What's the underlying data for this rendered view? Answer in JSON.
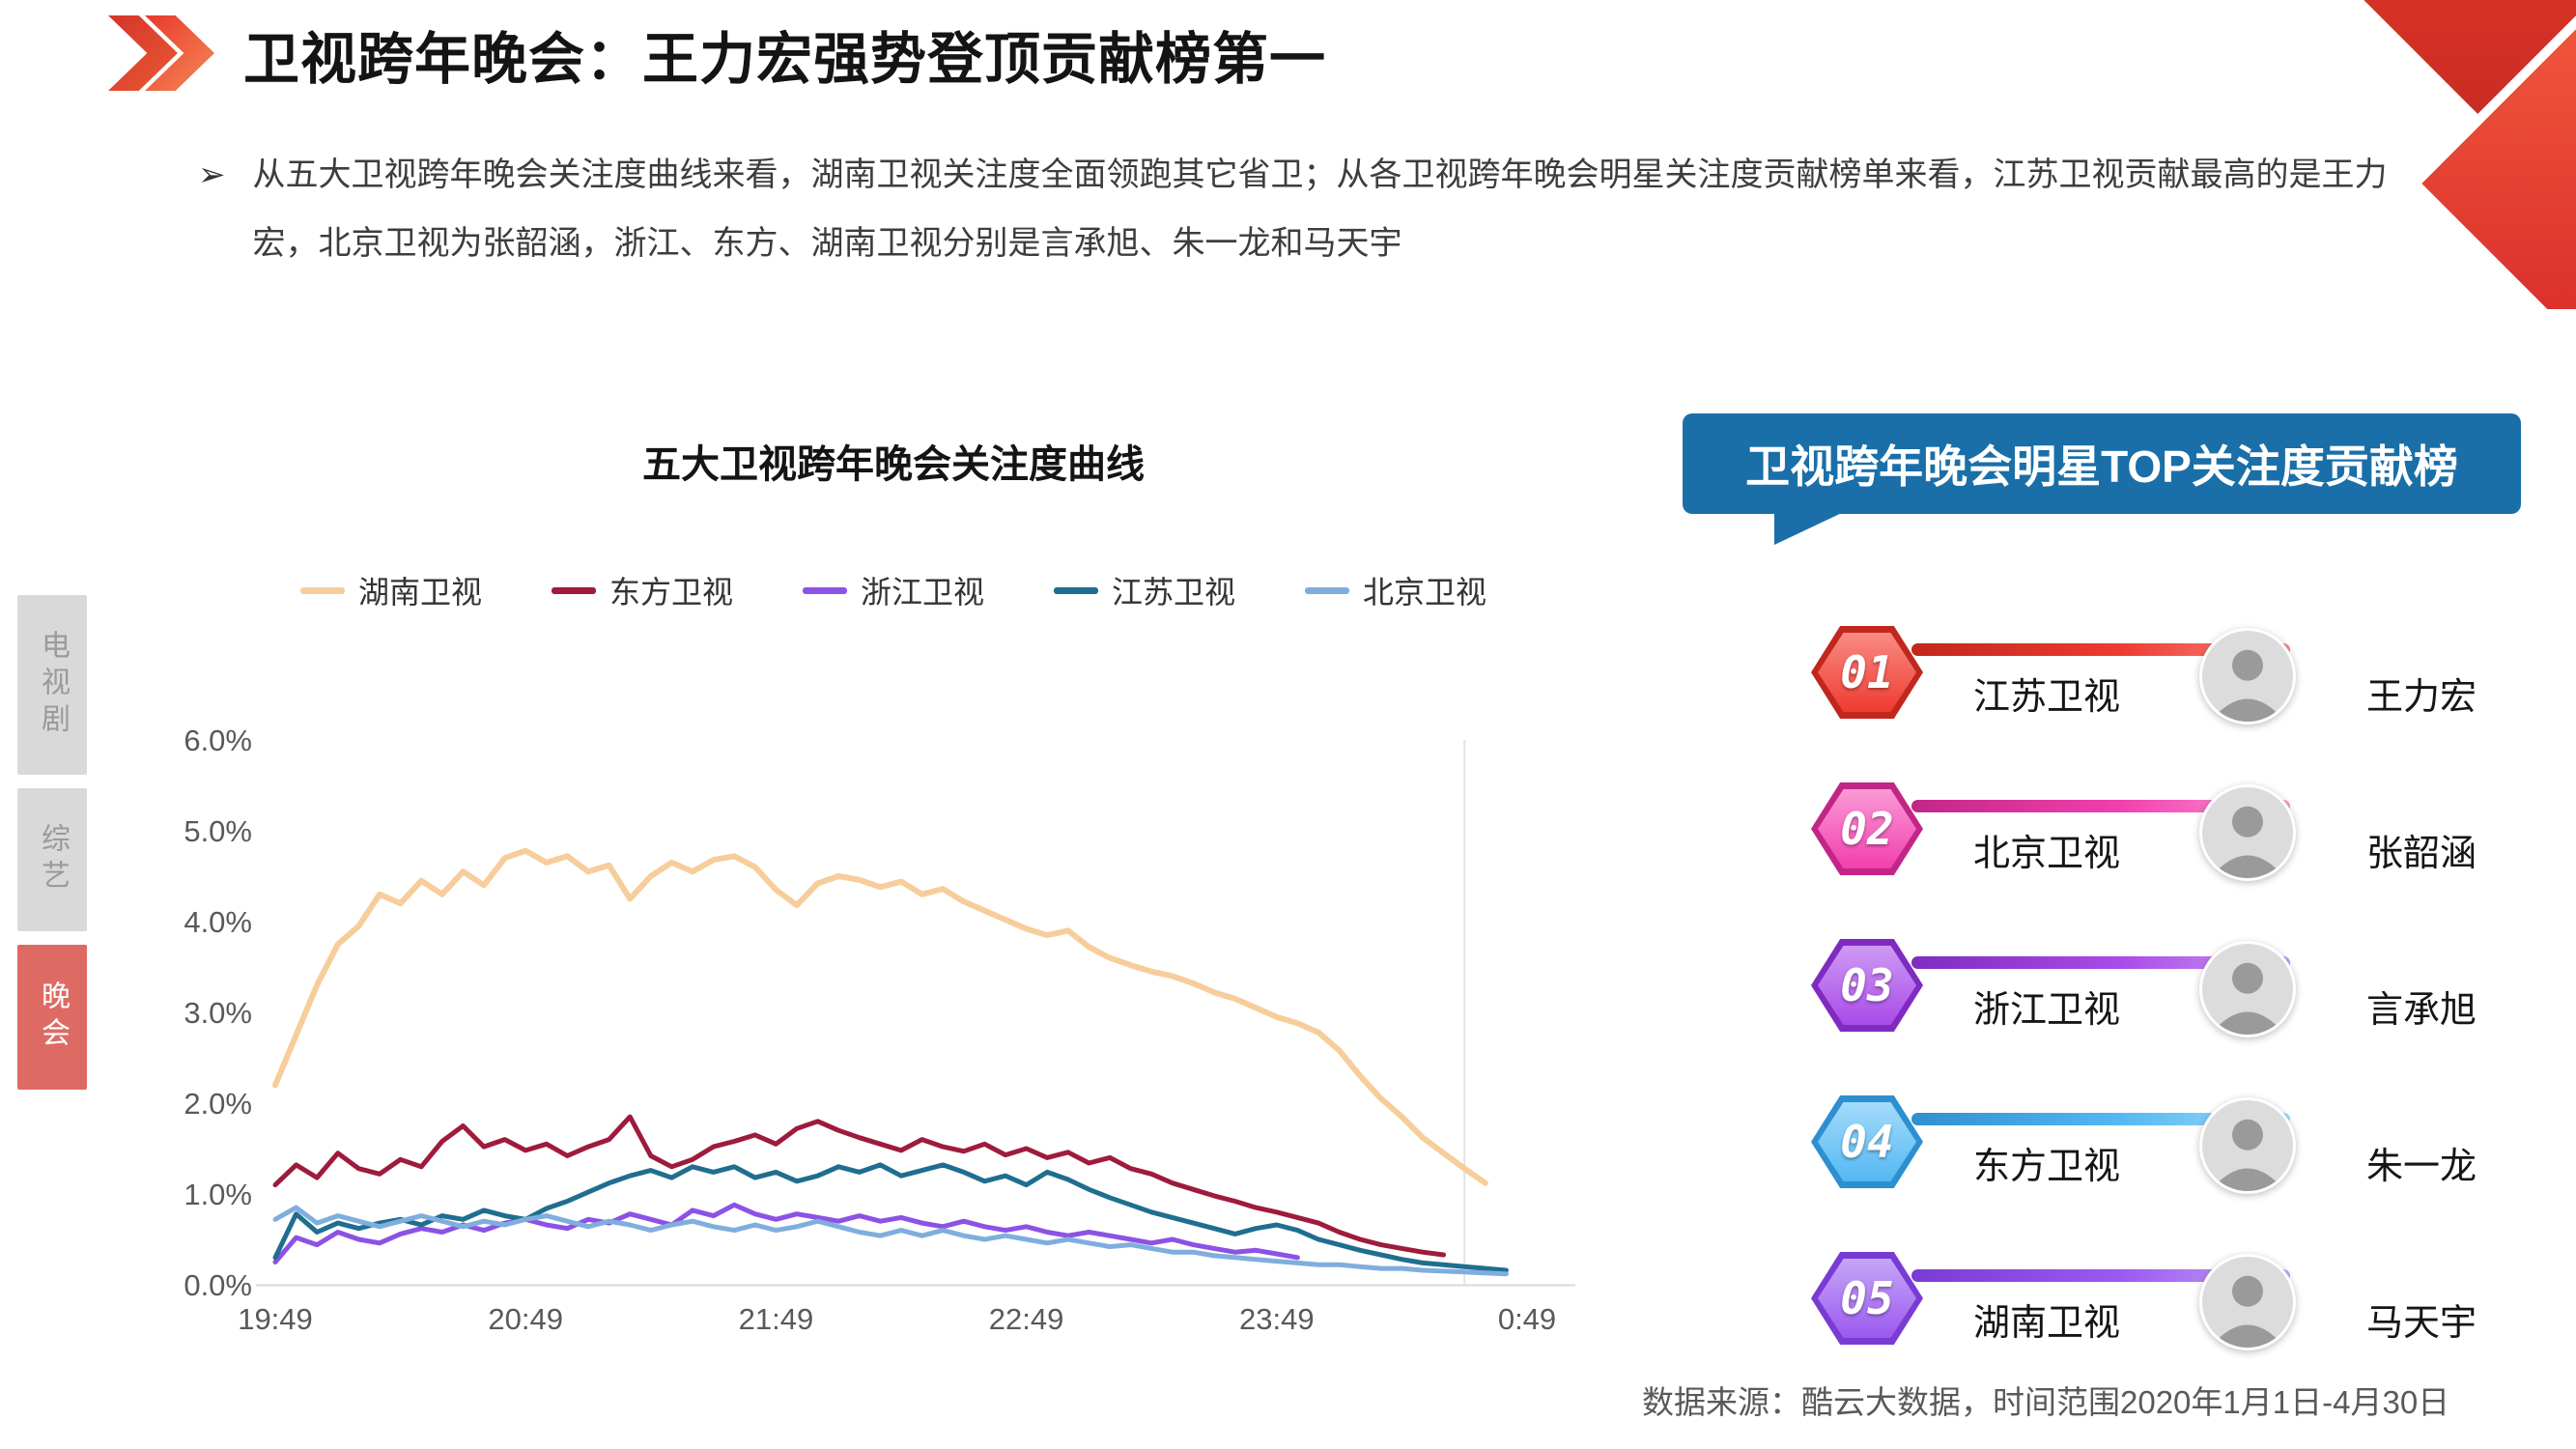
{
  "header": {
    "title": "卫视跨年晚会：王力宏强势登顶贡献榜第一",
    "bullet": "从五大卫视跨年晚会关注度曲线来看，湖南卫视关注度全面领跑其它省卫；从各卫视跨年晚会明星关注度贡献榜单来看，江苏卫视贡献最高的是王力宏，北京卫视为张韶涵，浙江、东方、湖南卫视分别是言承旭、朱一龙和马天宇"
  },
  "sidebar": {
    "tabs": [
      {
        "label": "电视剧",
        "active": false
      },
      {
        "label": "综艺",
        "active": false
      },
      {
        "label": "晚会",
        "active": true
      }
    ]
  },
  "chart_data": {
    "type": "line",
    "title": "五大卫视跨年晚会关注度曲线",
    "xlabel": "",
    "ylabel": "",
    "ylim": [
      0,
      6
    ],
    "unit": "%",
    "grid": false,
    "legend_position": "top",
    "x_interval_minutes": 5,
    "x_tick_labels": [
      "19:49",
      "20:49",
      "21:49",
      "22:49",
      "23:49",
      "0:49"
    ],
    "y_ticks": [
      "0.0%",
      "1.0%",
      "2.0%",
      "3.0%",
      "4.0%",
      "5.0%",
      "6.0%"
    ],
    "series": [
      {
        "name": "湖南卫视",
        "color": "#F6CD9B",
        "values": [
          2.2,
          2.75,
          3.3,
          3.75,
          3.95,
          4.3,
          4.2,
          4.45,
          4.3,
          4.55,
          4.4,
          4.7,
          4.78,
          4.65,
          4.72,
          4.55,
          4.62,
          4.25,
          4.5,
          4.65,
          4.55,
          4.68,
          4.72,
          4.6,
          4.35,
          4.18,
          4.42,
          4.5,
          4.46,
          4.38,
          4.44,
          4.3,
          4.36,
          4.22,
          4.12,
          4.02,
          3.92,
          3.85,
          3.9,
          3.72,
          3.6,
          3.52,
          3.45,
          3.4,
          3.32,
          3.22,
          3.15,
          3.05,
          2.95,
          2.88,
          2.78,
          2.58,
          2.3,
          2.05,
          1.85,
          1.62,
          1.45,
          1.28,
          1.12,
          null,
          null
        ]
      },
      {
        "name": "东方卫视",
        "color": "#9E1B3C",
        "values": [
          1.1,
          1.32,
          1.18,
          1.45,
          1.28,
          1.22,
          1.38,
          1.3,
          1.58,
          1.75,
          1.52,
          1.6,
          1.48,
          1.55,
          1.42,
          1.52,
          1.6,
          1.85,
          1.42,
          1.3,
          1.38,
          1.52,
          1.58,
          1.65,
          1.55,
          1.72,
          1.8,
          1.7,
          1.62,
          1.55,
          1.48,
          1.6,
          1.52,
          1.47,
          1.55,
          1.43,
          1.5,
          1.4,
          1.46,
          1.34,
          1.4,
          1.28,
          1.22,
          1.12,
          1.05,
          0.98,
          0.92,
          0.85,
          0.8,
          0.74,
          0.68,
          0.58,
          0.5,
          0.44,
          0.4,
          0.36,
          0.33,
          null,
          null,
          null,
          null
        ]
      },
      {
        "name": "浙江卫视",
        "color": "#8C52E5",
        "values": [
          0.25,
          0.52,
          0.44,
          0.58,
          0.5,
          0.46,
          0.56,
          0.62,
          0.58,
          0.66,
          0.6,
          0.68,
          0.72,
          0.66,
          0.62,
          0.72,
          0.68,
          0.78,
          0.72,
          0.66,
          0.82,
          0.76,
          0.88,
          0.78,
          0.72,
          0.78,
          0.74,
          0.7,
          0.76,
          0.7,
          0.74,
          0.68,
          0.64,
          0.7,
          0.64,
          0.6,
          0.64,
          0.58,
          0.54,
          0.58,
          0.54,
          0.5,
          0.46,
          0.5,
          0.44,
          0.4,
          0.36,
          0.38,
          0.34,
          0.3,
          null,
          null,
          null,
          null,
          null,
          null,
          null,
          null,
          null,
          null,
          null
        ]
      },
      {
        "name": "江苏卫视",
        "color": "#1F6E8F",
        "values": [
          0.3,
          0.78,
          0.58,
          0.68,
          0.62,
          0.68,
          0.72,
          0.66,
          0.76,
          0.72,
          0.82,
          0.76,
          0.72,
          0.84,
          0.92,
          1.02,
          1.12,
          1.2,
          1.26,
          1.18,
          1.3,
          1.24,
          1.3,
          1.18,
          1.24,
          1.14,
          1.2,
          1.3,
          1.24,
          1.32,
          1.2,
          1.26,
          1.32,
          1.24,
          1.14,
          1.2,
          1.1,
          1.24,
          1.16,
          1.05,
          0.96,
          0.88,
          0.8,
          0.74,
          0.68,
          0.62,
          0.56,
          0.62,
          0.66,
          0.6,
          0.5,
          0.44,
          0.38,
          0.33,
          0.28,
          0.24,
          0.22,
          0.2,
          0.18,
          0.16,
          null
        ]
      },
      {
        "name": "北京卫视",
        "color": "#7FAEDE",
        "values": [
          0.72,
          0.85,
          0.68,
          0.76,
          0.7,
          0.64,
          0.7,
          0.76,
          0.7,
          0.64,
          0.7,
          0.66,
          0.72,
          0.76,
          0.7,
          0.64,
          0.7,
          0.66,
          0.6,
          0.66,
          0.7,
          0.64,
          0.6,
          0.66,
          0.6,
          0.64,
          0.7,
          0.64,
          0.58,
          0.54,
          0.6,
          0.54,
          0.6,
          0.54,
          0.5,
          0.54,
          0.5,
          0.46,
          0.5,
          0.46,
          0.42,
          0.44,
          0.4,
          0.36,
          0.36,
          0.32,
          0.3,
          0.28,
          0.26,
          0.24,
          0.22,
          0.22,
          0.2,
          0.18,
          0.18,
          0.16,
          0.15,
          0.14,
          0.13,
          0.12,
          null
        ]
      }
    ]
  },
  "ranking": {
    "title": "卫视跨年晚会明星TOP关注度贡献榜",
    "items": [
      {
        "rank": "01",
        "channel": "江苏卫视",
        "star": "王力宏",
        "color": "#EE3B30",
        "color_dark": "#C1271D",
        "color_light": "#F98B84"
      },
      {
        "rank": "02",
        "channel": "北京卫视",
        "star": "张韶涵",
        "color": "#F23FAE",
        "color_dark": "#C12687",
        "color_light": "#FA9AD6"
      },
      {
        "rank": "03",
        "channel": "浙江卫视",
        "star": "言承旭",
        "color": "#A94BE8",
        "color_dark": "#7F2BC0",
        "color_light": "#CE9AF5"
      },
      {
        "rank": "04",
        "channel": "东方卫视",
        "star": "朱一龙",
        "color": "#53B8F2",
        "color_dark": "#2E8FD0",
        "color_light": "#A5DBFA"
      },
      {
        "rank": "05",
        "channel": "湖南卫视",
        "star": "马天宇",
        "color": "#9B59F0",
        "color_dark": "#7A3BD4",
        "color_light": "#C6A6F7"
      }
    ]
  },
  "footer": {
    "source": "数据来源：酷云大数据，时间范围2020年1月1日-4月30日"
  },
  "colors": {
    "accent_red": "#E8392E",
    "panel_blue": "#1A6FA8",
    "active_tab": "#DE6A64"
  },
  "icons": {
    "title_marker": "double-chevron-icon",
    "corner": "corner-ribbon-icon",
    "bullet": "arrow-bullet-icon",
    "avatar": "person-avatar-icon"
  }
}
